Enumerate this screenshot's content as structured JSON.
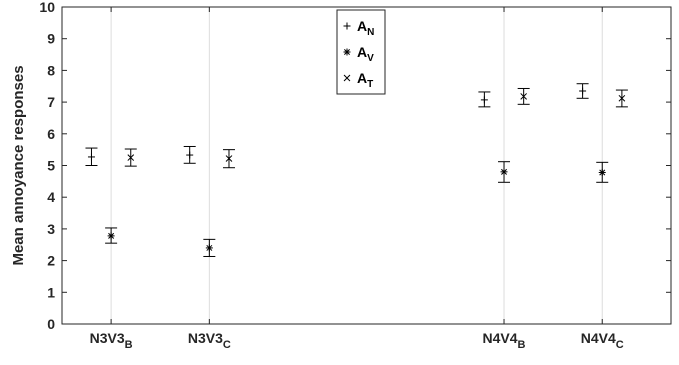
{
  "chart_data": {
    "type": "scatter",
    "ylabel": "Mean annoyance responses",
    "ylim": [
      0,
      10
    ],
    "yticks": [
      "0",
      "1",
      "2",
      "3",
      "4",
      "5",
      "6",
      "7",
      "8",
      "9",
      "10"
    ],
    "grid": "vertical-at-categories",
    "legend_position": "top-center",
    "categories": [
      {
        "main": "N3V3",
        "sub": "B"
      },
      {
        "main": "N3V3",
        "sub": "C"
      },
      {
        "main": "N4V4",
        "sub": "B"
      },
      {
        "main": "N4V4",
        "sub": "C"
      }
    ],
    "category_x": [
      1,
      2,
      5,
      6
    ],
    "xlim": [
      0.5,
      6.7
    ],
    "series": [
      {
        "name": "A",
        "sub": "N",
        "marker": "plus",
        "offset": -0.2,
        "values": [
          5.27,
          5.33,
          7.07,
          7.35
        ],
        "err_low": [
          5.0,
          5.07,
          6.85,
          7.12
        ],
        "err_high": [
          5.55,
          5.6,
          7.32,
          7.58
        ]
      },
      {
        "name": "A",
        "sub": "V",
        "marker": "star",
        "offset": 0.0,
        "values": [
          2.78,
          2.4,
          4.8,
          4.78
        ],
        "err_low": [
          2.55,
          2.13,
          4.47,
          4.47
        ],
        "err_high": [
          3.03,
          2.67,
          5.12,
          5.1
        ]
      },
      {
        "name": "A",
        "sub": "T",
        "marker": "cross",
        "offset": 0.2,
        "values": [
          5.25,
          5.22,
          7.18,
          7.12
        ],
        "err_low": [
          4.98,
          4.93,
          6.93,
          6.85
        ],
        "err_high": [
          5.52,
          5.5,
          7.43,
          7.38
        ]
      }
    ]
  }
}
